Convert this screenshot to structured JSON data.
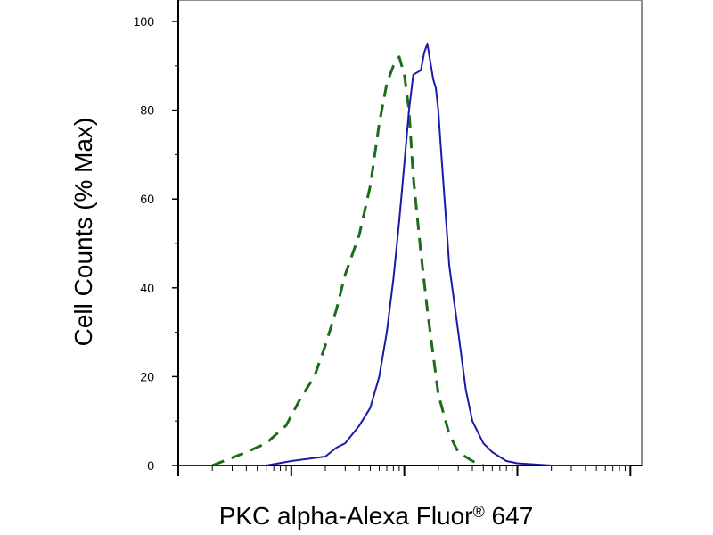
{
  "chart_data": {
    "type": "line",
    "title": "",
    "xlabel": "PKC alpha-Alexa Fluor",
    "xlabel_mark": "®",
    "xlabel_suffix": " 647",
    "ylabel": "Cell Counts (% Max)",
    "x_scale": "log",
    "ylim": [
      0,
      100
    ],
    "y_ticks": [
      "0",
      "20",
      "40",
      "60",
      "80",
      "100"
    ],
    "grid": false,
    "series": [
      {
        "style": "dashed",
        "color": "#1e6b1e",
        "x": [
          0.002,
          0.004,
          0.006,
          0.009,
          0.012,
          0.016,
          0.02,
          0.025,
          0.03,
          0.04,
          0.05,
          0.06,
          0.07,
          0.08,
          0.09,
          0.1,
          0.11,
          0.12,
          0.14,
          0.16,
          0.2,
          0.25,
          0.3,
          0.4,
          0.5
        ],
        "y": [
          0,
          3,
          5,
          9,
          15,
          20,
          27,
          35,
          43,
          52,
          63,
          77,
          86,
          90,
          92,
          88,
          80,
          65,
          48,
          35,
          16,
          7,
          3,
          1,
          0
        ]
      },
      {
        "style": "solid",
        "color": "#1a1aa8",
        "x": [
          0.001,
          0.006,
          0.01,
          0.02,
          0.025,
          0.03,
          0.04,
          0.05,
          0.06,
          0.07,
          0.08,
          0.09,
          0.1,
          0.11,
          0.12,
          0.14,
          0.15,
          0.16,
          0.18,
          0.19,
          0.2,
          0.21,
          0.23,
          0.25,
          0.3,
          0.35,
          0.4,
          0.5,
          0.6,
          0.8,
          1,
          2,
          5,
          10
        ],
        "y": [
          0,
          0,
          1,
          2,
          4,
          5,
          9,
          13,
          20,
          30,
          42,
          55,
          68,
          80,
          88,
          89,
          93,
          95,
          87,
          85,
          80,
          72,
          58,
          45,
          30,
          17,
          10,
          5,
          3,
          1,
          0.5,
          0,
          0,
          0
        ]
      }
    ]
  }
}
